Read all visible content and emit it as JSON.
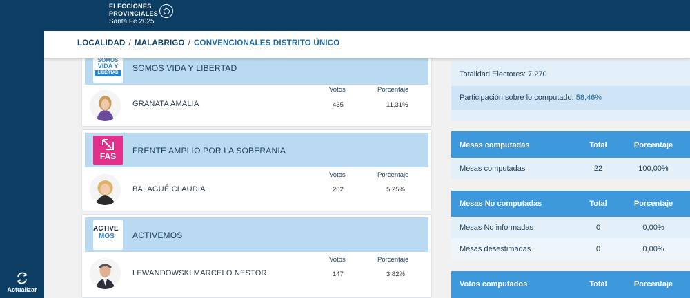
{
  "header": {
    "logo_line1": "ELECCIONES",
    "logo_line2": "PROVINCIALES",
    "logo_line3": "Santa Fe 2025"
  },
  "breadcrumb": [
    "LOCALIDAD",
    "MALABRIGO",
    "CONVENCIONALES DISTRITO ÚNICO"
  ],
  "sidebar": {
    "refresh_label": "Actualizar"
  },
  "columns": {
    "votos": "Votos",
    "porcentaje": "Porcentaje"
  },
  "parties": [
    {
      "name": "SOMOS VIDA Y LIBERTAD",
      "logo_text": [
        "SOMOS",
        "VIDA Y",
        "LIBERTAD"
      ],
      "candidate": "GRANATA AMALIA",
      "votes": "435",
      "percent": "11,31%"
    },
    {
      "name": "FRENTE AMPLIO POR LA SOBERANIA",
      "logo_text": [
        "FAS"
      ],
      "candidate": "BALAGUÉ CLAUDIA",
      "votes": "202",
      "percent": "5,25%"
    },
    {
      "name": "ACTIVEMOS",
      "logo_text": [
        "ACTIVE",
        "MOS"
      ],
      "candidate": "LEWANDOWSKI MARCELO NESTOR",
      "votes": "147",
      "percent": "3,82%"
    }
  ],
  "summary": {
    "electores_label": "Totalidad Electores:",
    "electores_value": "7.270",
    "participacion_label": "Participación sobre lo computado:",
    "participacion_value": "58,46%"
  },
  "mesas_computadas": {
    "header": [
      "Mesas computadas",
      "Total",
      "Porcentaje"
    ],
    "rows": [
      [
        "Mesas computadas",
        "22",
        "100,00%"
      ]
    ]
  },
  "mesas_no_computadas": {
    "header": [
      "Mesas No computadas",
      "Total",
      "Porcentaje"
    ],
    "rows": [
      [
        "Mesas No informadas",
        "0",
        "0,00%"
      ],
      [
        "Mesas desestimadas",
        "0",
        "0,00%"
      ]
    ]
  },
  "votos_computados": {
    "header": [
      "Votos computados",
      "Total",
      "Porcentaje"
    ]
  },
  "colors": {
    "navy": "#0c3e63",
    "party_header": "#b9daf0",
    "table_header": "#3d99dc",
    "light_row": "#e3f0f9",
    "mid_row": "#cfe5f5",
    "fas_pink": "#e4308a"
  }
}
